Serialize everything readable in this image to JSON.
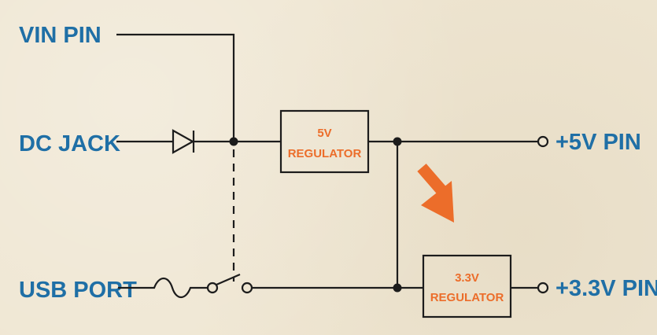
{
  "inputs": {
    "vin": "VIN PIN",
    "dc": "DC JACK",
    "usb": "USB PORT"
  },
  "outputs": {
    "five": "+5V PIN",
    "three": "+3.3V PIN"
  },
  "regulators": {
    "five_line1": "5V",
    "five_line2": "REGULATOR",
    "three_line1": "3.3V",
    "three_line2": "REGULATOR"
  },
  "colors": {
    "label": "#1f6fa6",
    "accent": "#ec6d2a",
    "line": "#1c1c1c",
    "background": "#efe6d2"
  },
  "icons": {
    "diode": "diode-icon",
    "fuse": "fuse-icon",
    "switch": "switch-icon",
    "arrow": "arrow-icon"
  }
}
